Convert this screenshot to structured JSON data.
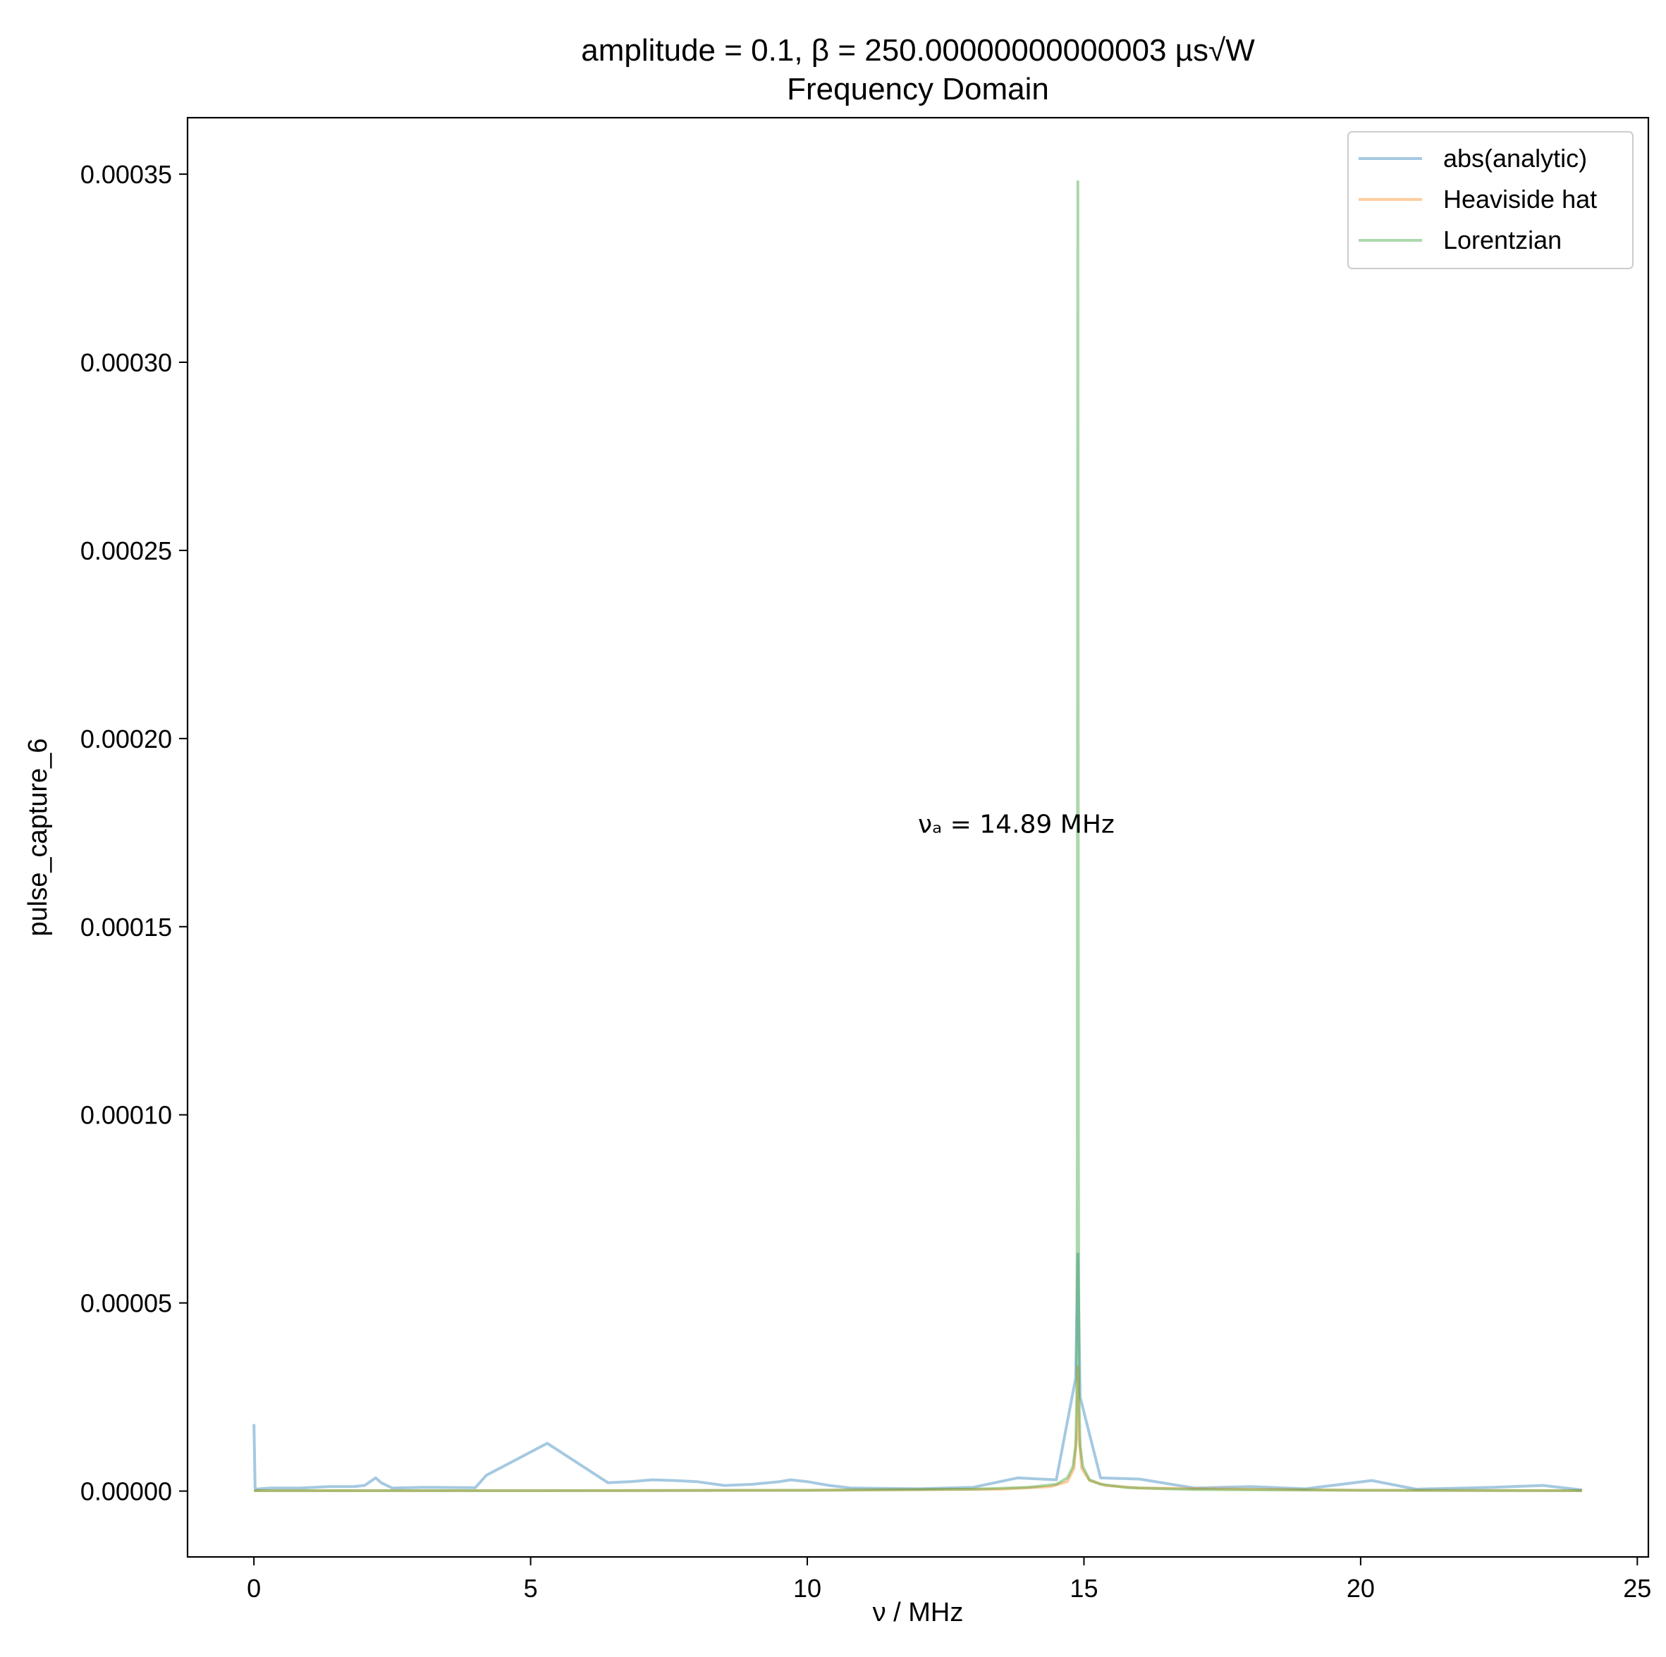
{
  "chart_data": {
    "type": "line",
    "title_line1": "amplitude = 0.1, β = 250.00000000000003 µs√W",
    "title_line2": "Frequency Domain",
    "xlabel": "ν / MHz",
    "ylabel": "pulse_capture_6",
    "xlim": [
      -1.2,
      25.2
    ],
    "ylim": [
      -1.75e-05,
      0.000365
    ],
    "xticks": [
      0,
      5,
      10,
      15,
      20,
      25
    ],
    "xtick_labels": [
      "0",
      "5",
      "10",
      "15",
      "20",
      "25"
    ],
    "yticks": [
      0.0,
      5e-05,
      0.0001,
      0.00015,
      0.0002,
      0.00025,
      0.0003,
      0.00035
    ],
    "ytick_labels": [
      "0.00000",
      "0.00005",
      "0.00010",
      "0.00015",
      "0.00020",
      "0.00025",
      "0.00030",
      "0.00035"
    ],
    "annotation": {
      "text": "νₐ = 14.89 MHz",
      "x": 12.0,
      "y": 0.000175
    },
    "legend_position": "top-right",
    "grid": false,
    "series": [
      {
        "name": "abs(analytic)",
        "color": "#1f77b4",
        "x": [
          0,
          0.02,
          0.03,
          0.3,
          0.85,
          1.35,
          1.8,
          2.0,
          2.1,
          2.2,
          2.3,
          2.5,
          3.1,
          4.0,
          4.2,
          5.3,
          6.4,
          6.8,
          7.2,
          7.6,
          8.0,
          8.5,
          9.0,
          9.5,
          9.7,
          10.0,
          10.4,
          10.8,
          12.0,
          13.0,
          13.8,
          14.5,
          14.85,
          14.89,
          14.93,
          15.3,
          16.0,
          17.0,
          18.0,
          19.0,
          20.2,
          21.0,
          22.4,
          23.3,
          24.0
        ],
        "y": [
          1.78e-05,
          1e-06,
          5e-07,
          8e-07,
          8e-07,
          1.2e-06,
          1.2e-06,
          1.5e-06,
          2.5e-06,
          3.5e-06,
          2.2e-06,
          8e-07,
          1e-06,
          9e-07,
          4.2e-06,
          1.27e-05,
          2.2e-06,
          2.5e-06,
          3e-06,
          2.8e-06,
          2.5e-06,
          1.5e-06,
          1.8e-06,
          2.5e-06,
          3e-06,
          2.5e-06,
          1.5e-06,
          8e-07,
          6e-07,
          1e-06,
          3.5e-06,
          3e-06,
          3e-05,
          6.3e-05,
          2.5e-05,
          3.5e-06,
          3.2e-06,
          8e-07,
          1.2e-06,
          6e-07,
          2.8e-06,
          5e-07,
          1e-06,
          1.5e-06,
          3e-07
        ]
      },
      {
        "name": "Heaviside hat",
        "color": "#ff7f0e",
        "x": [
          0,
          5,
          10,
          13.5,
          14.4,
          14.7,
          14.82,
          14.87,
          14.89,
          14.91,
          14.96,
          15.1,
          15.4,
          16.0,
          20,
          24.0
        ],
        "y": [
          1e-07,
          1e-07,
          2e-07,
          5e-07,
          1.2e-06,
          2.5e-06,
          6e-06,
          1.5e-05,
          3.3e-05,
          1.5e-05,
          6e-06,
          2.8e-06,
          1.5e-06,
          8e-07,
          2e-07,
          1e-07
        ]
      },
      {
        "name": "Lorentzian",
        "color": "#2ca02c",
        "x": [
          0,
          5,
          10,
          13.0,
          14.0,
          14.5,
          14.7,
          14.8,
          14.85,
          14.87,
          14.88,
          14.89,
          14.9,
          14.91,
          14.93,
          14.98,
          15.1,
          15.3,
          15.8,
          17,
          20,
          24.0
        ],
        "y": [
          1e-07,
          1e-07,
          2e-07,
          5e-07,
          1e-06,
          1.8e-06,
          3.5e-06,
          6.5e-06,
          1.2e-05,
          2.5e-05,
          9e-05,
          0.000348,
          9e-05,
          2.5e-05,
          1.2e-05,
          6.5e-06,
          3e-06,
          1.8e-06,
          9e-07,
          4e-07,
          2e-07,
          1e-07
        ]
      }
    ]
  }
}
